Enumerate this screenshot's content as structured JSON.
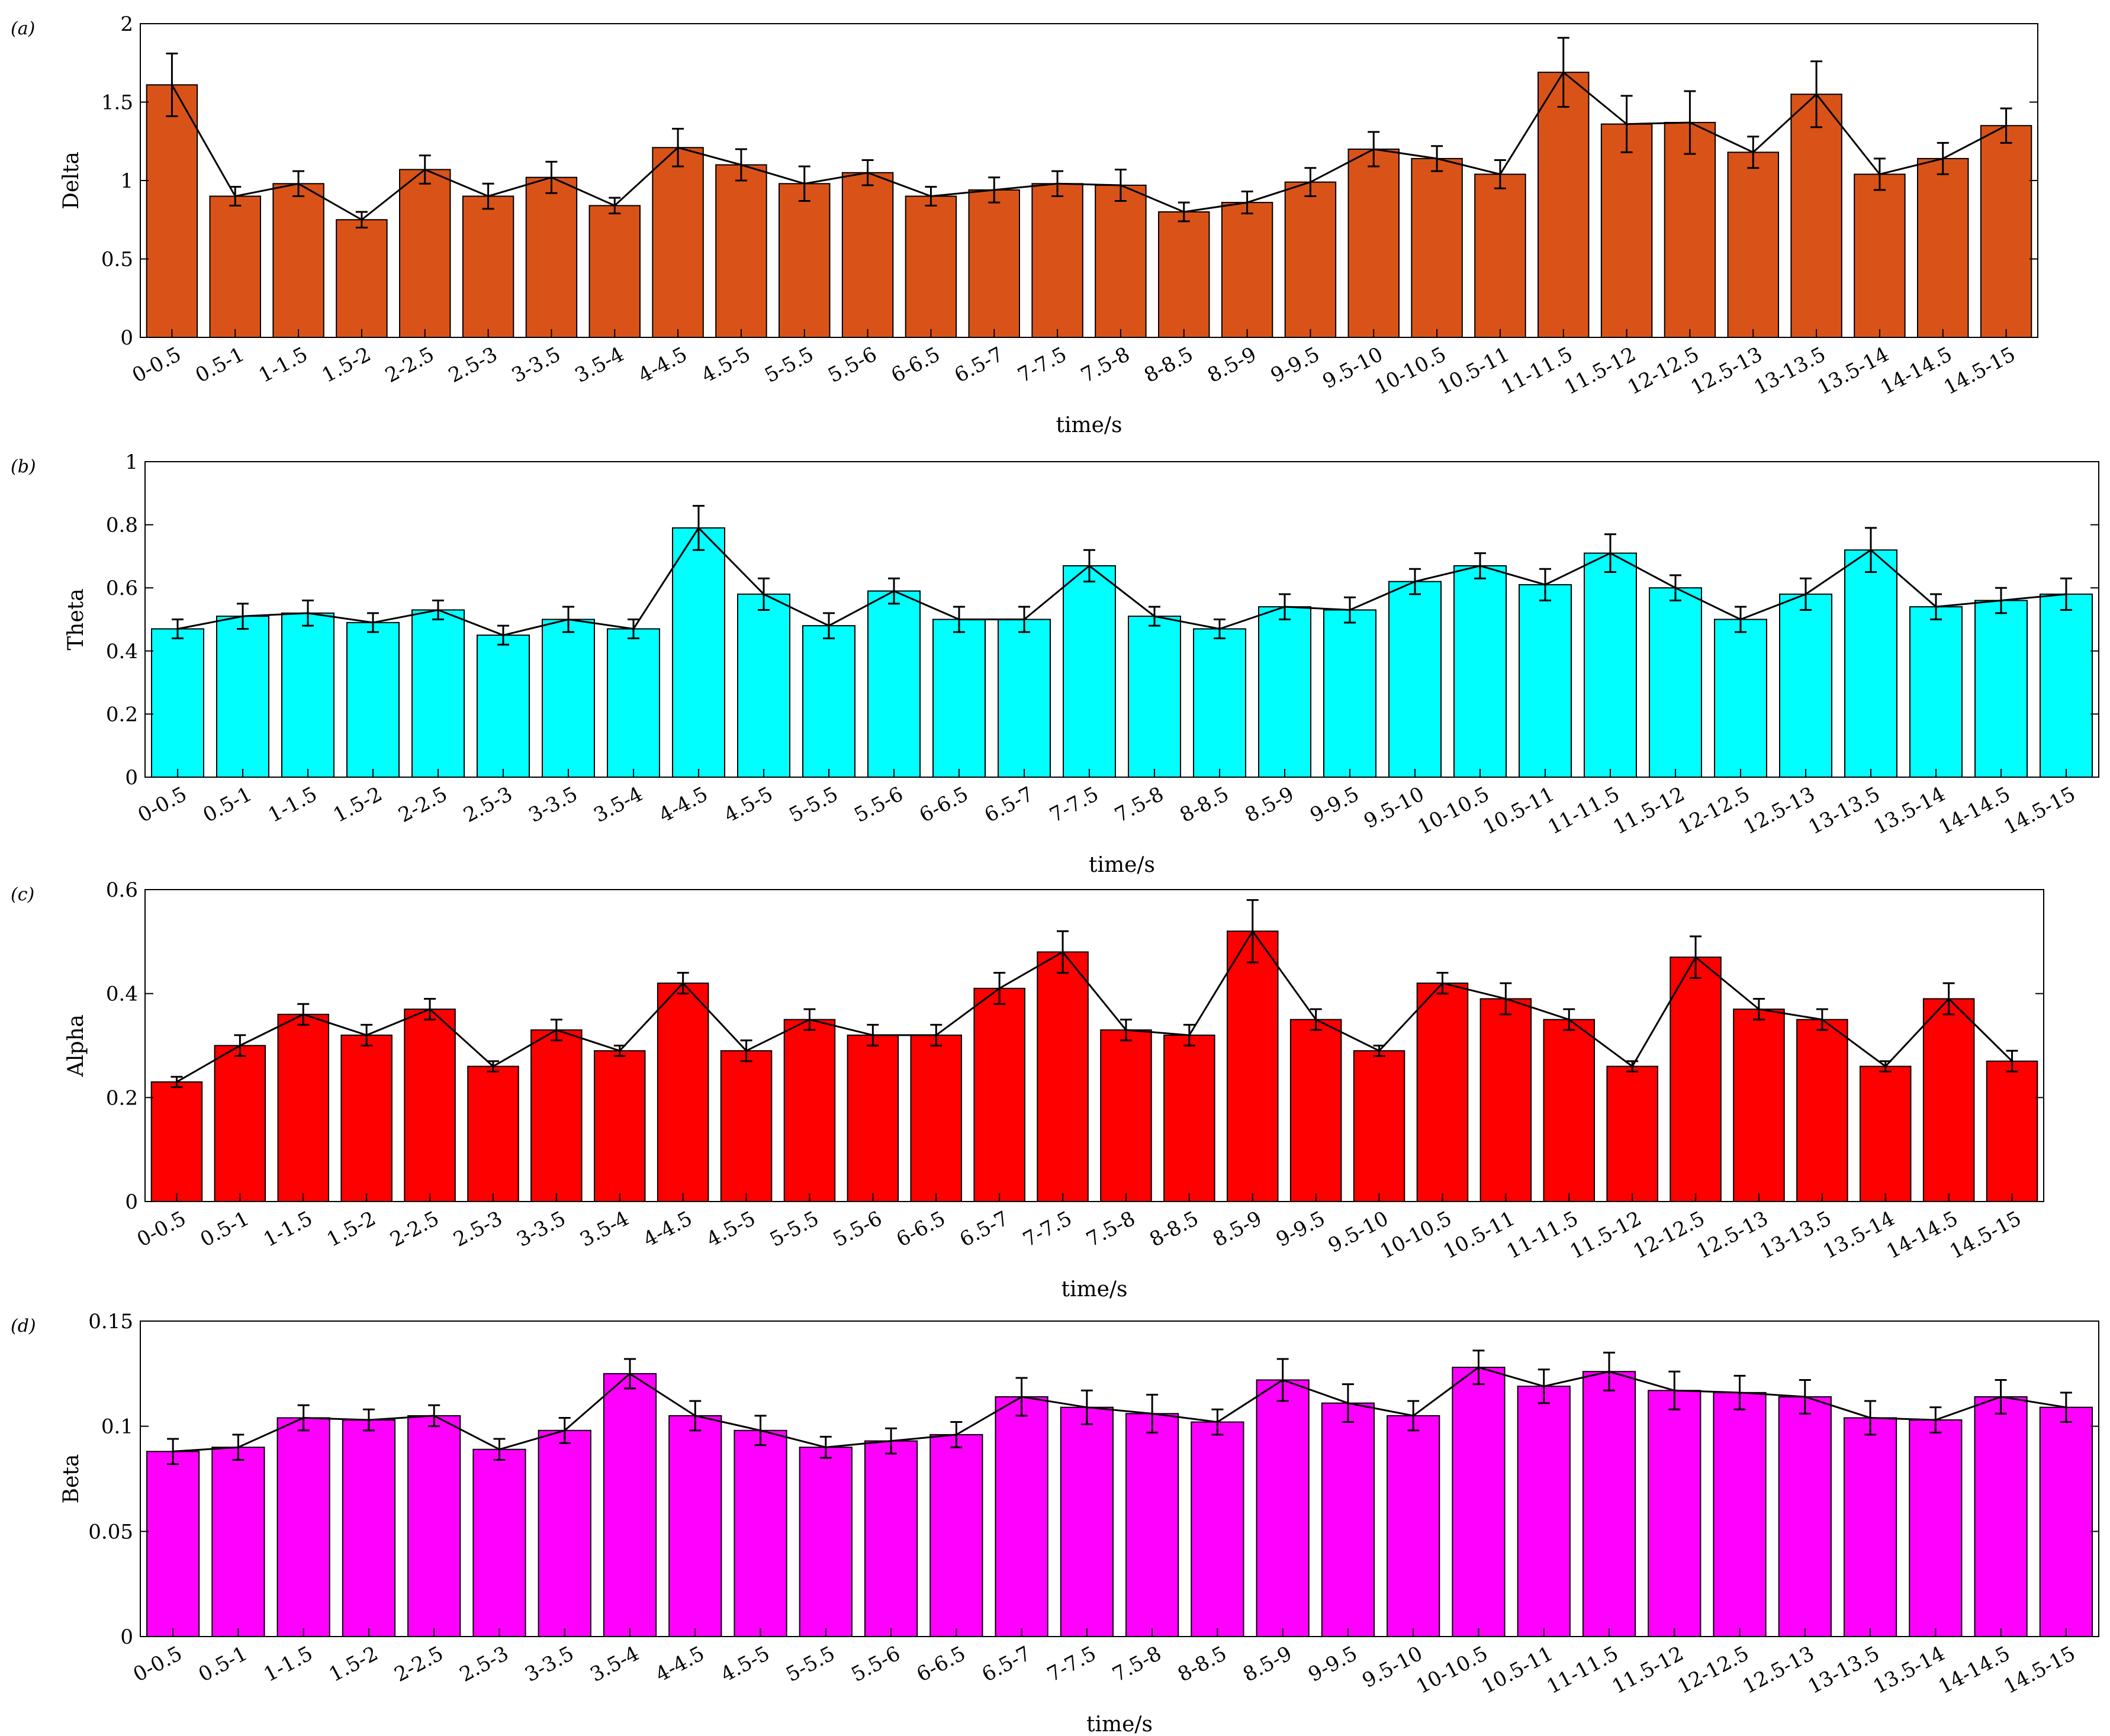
{
  "chart_data": [
    {
      "type": "bar",
      "panel_label": "(a)",
      "title": "",
      "xlabel": "time/s",
      "ylabel": "Delta",
      "ylim": [
        0,
        2
      ],
      "yticks": [
        0,
        0.5,
        1,
        1.5,
        2
      ],
      "ytick_labels": [
        "0",
        "0.5",
        "1",
        "1.5",
        "2"
      ],
      "bar_color": "#D95319",
      "grid": false,
      "categories": [
        "0-0.5",
        "0.5-1",
        "1-1.5",
        "1.5-2",
        "2-2.5",
        "2.5-3",
        "3-3.5",
        "3.5-4",
        "4-4.5",
        "4.5-5",
        "5-5.5",
        "5.5-6",
        "6-6.5",
        "6.5-7",
        "7-7.5",
        "7.5-8",
        "8-8.5",
        "8.5-9",
        "9-9.5",
        "9.5-10",
        "10-10.5",
        "10.5-11",
        "11-11.5",
        "11.5-12",
        "12-12.5",
        "12.5-13",
        "13-13.5",
        "13.5-14",
        "14-14.5",
        "14.5-15"
      ],
      "values": [
        1.61,
        0.9,
        0.98,
        0.75,
        1.07,
        0.9,
        1.02,
        0.84,
        1.21,
        1.1,
        0.98,
        1.05,
        0.9,
        0.94,
        0.98,
        0.97,
        0.8,
        0.86,
        0.99,
        1.2,
        1.14,
        1.04,
        1.69,
        1.36,
        1.37,
        1.18,
        1.55,
        1.04,
        1.14,
        1.35
      ],
      "errors": [
        0.2,
        0.06,
        0.08,
        0.05,
        0.09,
        0.08,
        0.1,
        0.05,
        0.12,
        0.1,
        0.11,
        0.08,
        0.06,
        0.08,
        0.08,
        0.1,
        0.06,
        0.07,
        0.09,
        0.11,
        0.08,
        0.09,
        0.22,
        0.18,
        0.2,
        0.1,
        0.21,
        0.1,
        0.1,
        0.11
      ]
    },
    {
      "type": "bar",
      "panel_label": "(b)",
      "title": "",
      "xlabel": "time/s",
      "ylabel": "Theta",
      "ylim": [
        0,
        1
      ],
      "yticks": [
        0,
        0.2,
        0.4,
        0.6,
        0.8,
        1
      ],
      "ytick_labels": [
        "0",
        "0.2",
        "0.4",
        "0.6",
        "0.8",
        "1"
      ],
      "bar_color": "#00FFFF",
      "grid": false,
      "categories": [
        "0-0.5",
        "0.5-1",
        "1-1.5",
        "1.5-2",
        "2-2.5",
        "2.5-3",
        "3-3.5",
        "3.5-4",
        "4-4.5",
        "4.5-5",
        "5-5.5",
        "5.5-6",
        "6-6.5",
        "6.5-7",
        "7-7.5",
        "7.5-8",
        "8-8.5",
        "8.5-9",
        "9-9.5",
        "9.5-10",
        "10-10.5",
        "10.5-11",
        "11-11.5",
        "11.5-12",
        "12-12.5",
        "12.5-13",
        "13-13.5",
        "13.5-14",
        "14-14.5",
        "14.5-15"
      ],
      "values": [
        0.47,
        0.51,
        0.52,
        0.49,
        0.53,
        0.45,
        0.5,
        0.47,
        0.79,
        0.58,
        0.48,
        0.59,
        0.5,
        0.5,
        0.67,
        0.51,
        0.47,
        0.54,
        0.53,
        0.62,
        0.67,
        0.61,
        0.71,
        0.6,
        0.5,
        0.58,
        0.72,
        0.54,
        0.56,
        0.58
      ],
      "errors": [
        0.03,
        0.04,
        0.04,
        0.03,
        0.03,
        0.03,
        0.04,
        0.03,
        0.07,
        0.05,
        0.04,
        0.04,
        0.04,
        0.04,
        0.05,
        0.03,
        0.03,
        0.04,
        0.04,
        0.04,
        0.04,
        0.05,
        0.06,
        0.04,
        0.04,
        0.05,
        0.07,
        0.04,
        0.04,
        0.05
      ]
    },
    {
      "type": "bar",
      "panel_label": "(c)",
      "title": "",
      "xlabel": "time/s",
      "ylabel": "Alpha",
      "ylim": [
        0,
        0.6
      ],
      "yticks": [
        0,
        0.2,
        0.4,
        0.6
      ],
      "ytick_labels": [
        "0",
        "0.2",
        "0.4",
        "0.6"
      ],
      "bar_color": "#FF0000",
      "grid": false,
      "categories": [
        "0-0.5",
        "0.5-1",
        "1-1.5",
        "1.5-2",
        "2-2.5",
        "2.5-3",
        "3-3.5",
        "3.5-4",
        "4-4.5",
        "4.5-5",
        "5-5.5",
        "5.5-6",
        "6-6.5",
        "6.5-7",
        "7-7.5",
        "7.5-8",
        "8-8.5",
        "8.5-9",
        "9-9.5",
        "9.5-10",
        "10-10.5",
        "10.5-11",
        "11-11.5",
        "11.5-12",
        "12-12.5",
        "12.5-13",
        "13-13.5",
        "13.5-14",
        "14-14.5",
        "14.5-15"
      ],
      "values": [
        0.23,
        0.3,
        0.36,
        0.32,
        0.37,
        0.26,
        0.33,
        0.29,
        0.42,
        0.29,
        0.35,
        0.32,
        0.32,
        0.41,
        0.48,
        0.33,
        0.32,
        0.52,
        0.35,
        0.29,
        0.42,
        0.39,
        0.35,
        0.26,
        0.47,
        0.37,
        0.35,
        0.26,
        0.39,
        0.27
      ],
      "errors": [
        0.01,
        0.02,
        0.02,
        0.02,
        0.02,
        0.01,
        0.02,
        0.01,
        0.02,
        0.02,
        0.02,
        0.02,
        0.02,
        0.03,
        0.04,
        0.02,
        0.02,
        0.06,
        0.02,
        0.01,
        0.02,
        0.03,
        0.02,
        0.01,
        0.04,
        0.02,
        0.02,
        0.01,
        0.03,
        0.02
      ]
    },
    {
      "type": "bar",
      "panel_label": "(d)",
      "title": "",
      "xlabel": "time/s",
      "ylabel": "Beta",
      "ylim": [
        0,
        0.15
      ],
      "yticks": [
        0,
        0.05,
        0.1,
        0.15
      ],
      "ytick_labels": [
        "0",
        "0.05",
        "0.1",
        "0.15"
      ],
      "bar_color": "#FF00FF",
      "grid": false,
      "categories": [
        "0-0.5",
        "0.5-1",
        "1-1.5",
        "1.5-2",
        "2-2.5",
        "2.5-3",
        "3-3.5",
        "3.5-4",
        "4-4.5",
        "4.5-5",
        "5-5.5",
        "5.5-6",
        "6-6.5",
        "6.5-7",
        "7-7.5",
        "7.5-8",
        "8-8.5",
        "8.5-9",
        "9-9.5",
        "9.5-10",
        "10-10.5",
        "10.5-11",
        "11-11.5",
        "11.5-12",
        "12-12.5",
        "12.5-13",
        "13-13.5",
        "13.5-14",
        "14-14.5",
        "14.5-15"
      ],
      "values": [
        0.088,
        0.09,
        0.104,
        0.103,
        0.105,
        0.089,
        0.098,
        0.125,
        0.105,
        0.098,
        0.09,
        0.093,
        0.096,
        0.114,
        0.109,
        0.106,
        0.102,
        0.122,
        0.111,
        0.105,
        0.128,
        0.119,
        0.126,
        0.117,
        0.116,
        0.114,
        0.104,
        0.103,
        0.114,
        0.109
      ],
      "errors": [
        0.006,
        0.006,
        0.006,
        0.005,
        0.005,
        0.005,
        0.006,
        0.007,
        0.007,
        0.007,
        0.005,
        0.006,
        0.006,
        0.009,
        0.008,
        0.009,
        0.006,
        0.01,
        0.009,
        0.007,
        0.008,
        0.008,
        0.009,
        0.009,
        0.008,
        0.008,
        0.008,
        0.006,
        0.008,
        0.007
      ]
    }
  ]
}
